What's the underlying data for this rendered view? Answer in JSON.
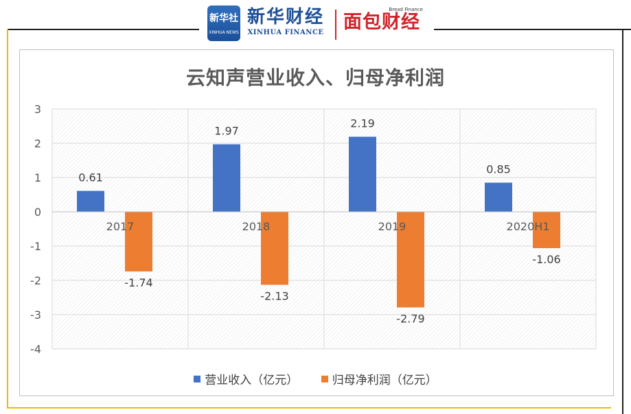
{
  "header": {
    "logo_badge_text": "新华社",
    "logo_badge_sub": "XINHUA NEWS",
    "brand_cn": "新华财经",
    "brand_en": "XINHUA FINANCE",
    "partner_en": "Bread Finance",
    "partner_cn": "面包财经"
  },
  "colors": {
    "revenue": "#4472c4",
    "profit": "#ed7d31",
    "frame_accent": "#f0b800",
    "axis_text": "#595959"
  },
  "chart_data": {
    "type": "bar",
    "title": "云知声营业收入、归母净利润",
    "categories": [
      "2017",
      "2018",
      "2019",
      "2020H1"
    ],
    "series": [
      {
        "name": "营业收入（亿元）",
        "values": [
          0.61,
          1.97,
          2.19,
          0.85
        ]
      },
      {
        "name": "归母净利润（亿元）",
        "values": [
          -1.74,
          -2.13,
          -2.79,
          -1.06
        ]
      }
    ],
    "data_labels": [
      [
        "0.61",
        "1.97",
        "2.19",
        "0.85"
      ],
      [
        "-1.74",
        "-2.13",
        "-2.79",
        "-1.06"
      ]
    ],
    "ylim": [
      -4,
      3
    ],
    "yticks": [
      "3",
      "2",
      "1",
      "0",
      "-1",
      "-2",
      "-3",
      "-4"
    ],
    "grid": true,
    "legend": "bottom"
  }
}
